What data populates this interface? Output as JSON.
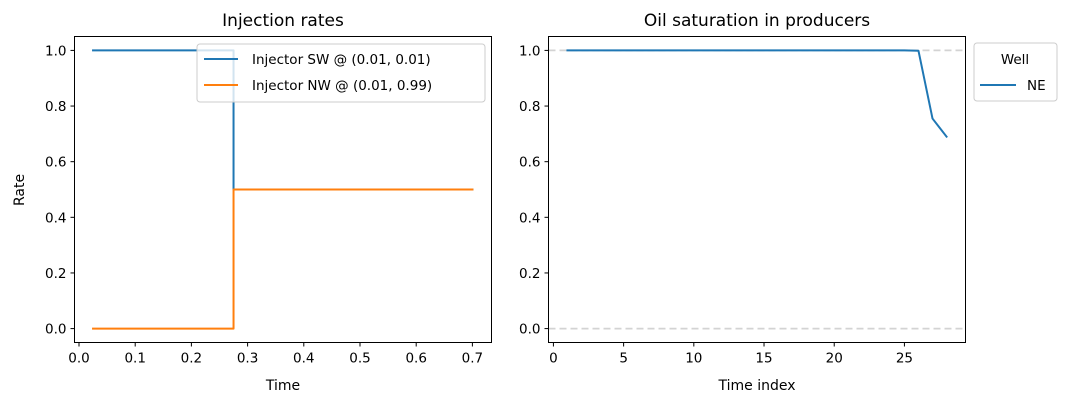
{
  "chart_data": [
    {
      "type": "line",
      "title": "Injection rates",
      "xlabel": "Time",
      "ylabel": "Rate",
      "xlim": [
        -0.008,
        0.734
      ],
      "ylim": [
        -0.05,
        1.05
      ],
      "xticks": [
        0.0,
        0.1,
        0.2,
        0.3,
        0.4,
        0.5,
        0.6,
        0.7
      ],
      "xtick_labels": [
        "0.0",
        "0.1",
        "0.2",
        "0.3",
        "0.4",
        "0.5",
        "0.6",
        "0.7"
      ],
      "yticks": [
        0.0,
        0.2,
        0.4,
        0.6,
        0.8,
        1.0
      ],
      "ytick_labels": [
        "0.0",
        "0.2",
        "0.4",
        "0.6",
        "0.8",
        "1.0"
      ],
      "grid": false,
      "legend": {
        "placement": "top-right"
      },
      "series": [
        {
          "name": "Injector SW @ (0.01, 0.01)",
          "color": "#1f77b4",
          "x": [
            0.025,
            0.275,
            0.275,
            0.7
          ],
          "y": [
            1.0,
            1.0,
            0.5,
            0.5
          ]
        },
        {
          "name": "Injector NW @ (0.01, 0.99)",
          "color": "#ff7f0e",
          "x": [
            0.025,
            0.275,
            0.275,
            0.7
          ],
          "y": [
            0.0,
            0.0,
            0.5,
            0.5
          ]
        }
      ]
    },
    {
      "type": "line",
      "title": "Oil saturation in producers",
      "xlabel": "Time index",
      "ylabel": "",
      "xlim": [
        -0.35,
        29.35
      ],
      "ylim": [
        -0.05,
        1.05
      ],
      "xticks": [
        0,
        5,
        10,
        15,
        20,
        25
      ],
      "xtick_labels": [
        "0",
        "5",
        "10",
        "15",
        "20",
        "25"
      ],
      "yticks": [
        0.0,
        0.2,
        0.4,
        0.6,
        0.8,
        1.0
      ],
      "ytick_labels": [
        "0.0",
        "0.2",
        "0.4",
        "0.6",
        "0.8",
        "1.0"
      ],
      "grid": false,
      "reference_lines": [
        {
          "y": 0.0,
          "style": "dashed",
          "color": "#d3d3d3"
        },
        {
          "y": 1.0,
          "style": "dashed",
          "color": "#d3d3d3"
        }
      ],
      "legend": {
        "title": "Well",
        "placement": "outside-right"
      },
      "series": [
        {
          "name": "NE",
          "color": "#1f77b4",
          "x": [
            1,
            2,
            3,
            4,
            5,
            6,
            7,
            8,
            9,
            10,
            11,
            12,
            13,
            14,
            15,
            16,
            17,
            18,
            19,
            20,
            21,
            22,
            23,
            24,
            25,
            26,
            27,
            28
          ],
          "y": [
            1.0,
            1.0,
            1.0,
            1.0,
            1.0,
            1.0,
            1.0,
            1.0,
            1.0,
            1.0,
            1.0,
            1.0,
            1.0,
            1.0,
            1.0,
            1.0,
            1.0,
            1.0,
            1.0,
            1.0,
            1.0,
            1.0,
            1.0,
            1.0,
            1.0,
            0.999,
            0.755,
            0.69
          ]
        }
      ]
    }
  ]
}
